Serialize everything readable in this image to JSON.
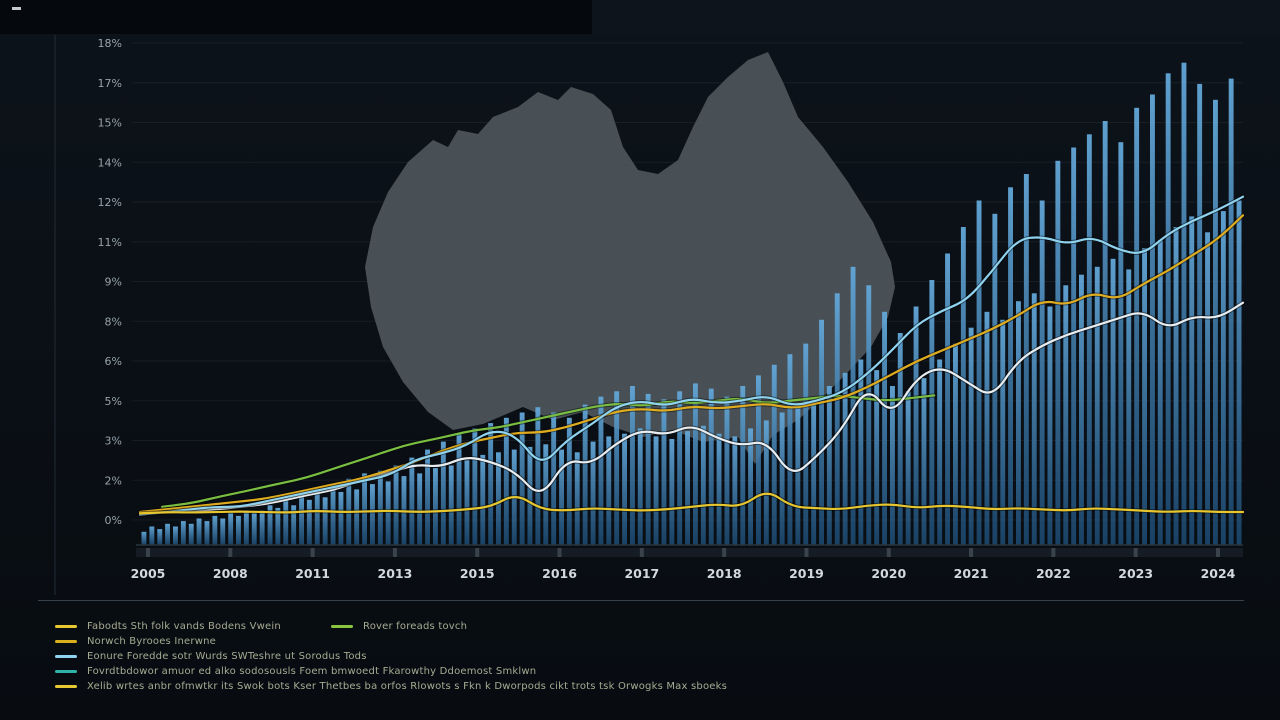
{
  "meta": {
    "background": "#0a0f15",
    "accent_blue": "#3a7fb5"
  },
  "chart_data": {
    "type": "bar",
    "subtype": "composite time-series: volume bars + multiple trend lines over an Australia map silhouette",
    "title": "",
    "xlabel": "",
    "ylabel": "",
    "grid": true,
    "legend_position": "bottom",
    "ylim": [
      0,
      18
    ],
    "y_tick_labels": [
      "18%",
      "17%",
      "15%",
      "14%",
      "12%",
      "11%",
      "9%",
      "8%",
      "6%",
      "5%",
      "3%",
      "2%",
      "0%"
    ],
    "x_tick_labels": [
      "2005",
      "2008",
      "2011",
      "2013",
      "2015",
      "2016",
      "2017",
      "2018",
      "2019",
      "2020",
      "2021",
      "2022",
      "2023",
      "2024"
    ],
    "background_map": "australia-silhouette",
    "map_color": "#4e565b",
    "bars": {
      "name": "blue-volume-bars",
      "color_top": "#63a7d8",
      "color_bottom": "#1c4a72",
      "values": [
        0.5,
        0.7,
        0.6,
        0.8,
        0.7,
        0.9,
        0.8,
        1.0,
        0.9,
        1.1,
        1.0,
        1.2,
        1.1,
        1.3,
        1.2,
        1.3,
        1.5,
        1.4,
        1.7,
        1.5,
        1.9,
        1.7,
        2.1,
        1.8,
        2.3,
        2.0,
        2.5,
        2.1,
        2.7,
        2.3,
        2.8,
        2.4,
        3.0,
        2.6,
        3.3,
        2.7,
        3.6,
        2.9,
        3.9,
        3.0,
        4.2,
        3.2,
        4.4,
        3.4,
        4.6,
        3.5,
        4.8,
        3.6,
        5.0,
        3.7,
        5.2,
        3.8,
        5.0,
        3.6,
        4.8,
        3.5,
        5.3,
        3.9,
        5.6,
        4.1,
        5.8,
        4.2,
        6.0,
        4.4,
        5.7,
        4.1,
        5.5,
        4.0,
        5.8,
        4.3,
        6.1,
        4.5,
        5.9,
        4.2,
        5.6,
        4.1,
        6.0,
        4.4,
        6.4,
        4.7,
        6.8,
        5.0,
        7.2,
        5.2,
        7.6,
        5.5,
        8.5,
        6.0,
        9.5,
        6.5,
        10.5,
        7.0,
        9.8,
        6.6,
        8.8,
        6.0,
        8.0,
        5.8,
        9.0,
        6.3,
        10.0,
        7.0,
        11.0,
        7.6,
        12.0,
        8.2,
        13.0,
        8.8,
        12.5,
        8.5,
        13.5,
        9.2,
        14.0,
        9.5,
        13.0,
        9.0,
        14.5,
        9.8,
        15.0,
        10.2,
        15.5,
        10.5,
        16.0,
        10.8,
        15.2,
        10.4,
        16.5,
        11.2,
        17.0,
        11.5,
        17.8,
        12.0,
        18.2,
        12.4,
        17.4,
        11.8,
        16.8,
        12.6,
        17.6,
        13.0
      ]
    },
    "series": [
      {
        "name": "green-line",
        "color": "#79bd41",
        "span": [
          0.02,
          0.72
        ],
        "values": [
          0.5,
          0.6,
          0.8,
          1.0,
          1.2,
          1.4,
          1.6,
          1.9,
          2.2,
          2.5,
          2.8,
          3.0,
          3.2,
          3.4,
          3.5,
          3.7,
          3.9,
          4.1,
          4.3,
          4.4,
          4.3,
          4.5,
          4.4,
          4.5,
          4.6,
          4.4,
          4.5,
          4.6,
          4.7,
          4.6,
          4.5,
          4.6,
          4.7
        ]
      },
      {
        "name": "white-line",
        "color": "#e9edef",
        "span": [
          0,
          1
        ],
        "values": [
          0.2,
          0.3,
          0.3,
          0.4,
          0.5,
          0.6,
          0.8,
          1.0,
          1.2,
          1.6,
          1.8,
          2.1,
          2.0,
          2.4,
          2.2,
          1.8,
          0.8,
          2.3,
          2.1,
          2.9,
          3.4,
          3.2,
          3.6,
          3.1,
          2.8,
          3.0,
          1.6,
          2.4,
          3.4,
          5.1,
          3.9,
          5.4,
          5.8,
          5.2,
          4.6,
          6.0,
          6.6,
          7.0,
          7.3,
          7.6,
          7.9,
          7.2,
          7.7,
          7.6,
          8.2
        ]
      },
      {
        "name": "gold-line",
        "color": "#dfac20",
        "span": [
          0,
          1
        ],
        "values": [
          0.3,
          0.4,
          0.5,
          0.6,
          0.7,
          0.8,
          1.0,
          1.2,
          1.4,
          1.6,
          1.9,
          2.2,
          2.6,
          2.9,
          3.1,
          3.3,
          3.3,
          3.5,
          3.8,
          4.1,
          4.2,
          4.1,
          4.3,
          4.2,
          4.3,
          4.4,
          4.2,
          4.4,
          4.6,
          5.0,
          5.5,
          6.0,
          6.4,
          6.8,
          7.2,
          7.7,
          8.3,
          8.1,
          8.6,
          8.3,
          8.9,
          9.4,
          10.0,
          10.6,
          11.5
        ]
      },
      {
        "name": "light-blue-line",
        "color": "#8fd3ee",
        "span": [
          0,
          1
        ],
        "values": [
          0.2,
          0.3,
          0.4,
          0.5,
          0.5,
          0.7,
          0.9,
          1.1,
          1.3,
          1.5,
          1.7,
          2.3,
          2.5,
          2.8,
          3.4,
          3.2,
          2.0,
          3.0,
          3.6,
          4.3,
          4.5,
          4.3,
          4.6,
          4.4,
          4.5,
          4.7,
          4.3,
          4.5,
          4.8,
          5.5,
          6.4,
          7.4,
          7.9,
          8.3,
          9.4,
          10.6,
          10.7,
          10.4,
          10.7,
          10.2,
          10.0,
          10.8,
          11.3,
          11.7,
          12.2
        ]
      },
      {
        "name": "flat-yellow-line",
        "color": "#e8c62e",
        "span": [
          0,
          1
        ],
        "values": [
          0.25,
          0.3,
          0.28,
          0.3,
          0.32,
          0.3,
          0.28,
          0.35,
          0.3,
          0.32,
          0.35,
          0.3,
          0.33,
          0.4,
          0.5,
          1.0,
          0.4,
          0.35,
          0.45,
          0.4,
          0.35,
          0.4,
          0.5,
          0.6,
          0.5,
          1.15,
          0.5,
          0.45,
          0.4,
          0.55,
          0.6,
          0.45,
          0.55,
          0.5,
          0.4,
          0.45,
          0.4,
          0.35,
          0.45,
          0.4,
          0.35,
          0.3,
          0.35,
          0.3,
          0.3
        ]
      }
    ]
  },
  "legend": {
    "rows": [
      [
        {
          "color": "#e8c832",
          "label": "Fabodts Sth folk vands Bodens Vwein"
        },
        {
          "color": "#8bc53f",
          "label": "Rover foreads tovch"
        }
      ],
      [
        {
          "color": "#d9b01c",
          "label": "Norwch Byrooes Inerwne"
        }
      ],
      [
        {
          "color": "#8fd3ee",
          "label": "Eonure Foredde sotr Wurds SWTeshre ut Sorodus Tods"
        }
      ],
      [
        {
          "color": "#2fb3a8",
          "label": "Fovrdtbdowor amuor ed alko sodosousls  Foem bmwoedt Fkarowthy Ddoemost Smklwn"
        }
      ],
      [
        {
          "color": "#e8c832",
          "label": "Xelib wrtes anbr ofmwtkr its Swok bots Kser Thetbes ba orfos Rlowots s Fkn k Dworpods cikt trots tsk Orwogks Max sboeks"
        }
      ]
    ]
  }
}
